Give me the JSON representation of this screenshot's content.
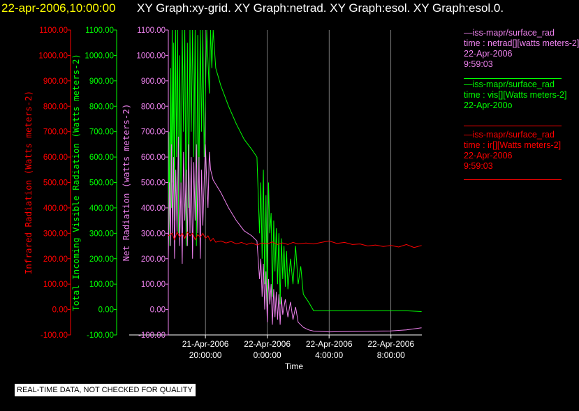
{
  "header": {
    "datetime": "22-apr-2006,10:00:00",
    "graphs": "XY Graph:xy-grid.  XY Graph:netrad.  XY Graph:esol.  XY Graph:esol.0."
  },
  "legend": [
    {
      "line1": "—iss-mapr/surface_rad",
      "line2": "time : netrad[][watts meters-2]",
      "line3": "22-Apr-2006",
      "line4": "9:59:03",
      "color": "#ee82ee"
    },
    {
      "line1": "—iss-mapr/surface_rad",
      "line2": "time : vis[][Watts meters-2]",
      "line3": "22-Apr-200o",
      "line4": "",
      "color": "#00ff00"
    },
    {
      "line1": "—iss-mapr/surface_rad",
      "line2": "time : ir[][Watts meters-2]",
      "line3": "22-Apr-2006",
      "line4": "9:59:03",
      "color": "#ff0000"
    }
  ],
  "disclaimer": "REAL-TIME DATA, NOT CHECKED FOR QUALITY",
  "colors": {
    "ir": "#ff0000",
    "vis": "#00ff00",
    "netrad": "#ee82ee",
    "grid": "#ffffff",
    "axis": "#ffffff"
  },
  "chart_data": {
    "type": "line",
    "xlabel": "Time",
    "x_ticks": [
      {
        "value": "2006-04-21T20:00",
        "label1": "21-Apr-2006",
        "label2": "20:00:00"
      },
      {
        "value": "2006-04-22T00:00",
        "label1": "22-Apr-2006",
        "label2": "0:00:00"
      },
      {
        "value": "2006-04-22T04:00",
        "label1": "22-Apr-2006",
        "label2": "4:00:00"
      },
      {
        "value": "2006-04-22T08:00",
        "label1": "22-Apr-2006",
        "label2": "8:00:00"
      }
    ],
    "xlim": [
      "2006-04-21T17:36",
      "2006-04-22T10:00"
    ],
    "axes": [
      {
        "id": "ir",
        "ylabel": "Infrared Radiation (Watts meters-2)",
        "ylim": [
          -100,
          1100
        ],
        "ticks": [
          "1100.00",
          "1000.00",
          "900.00",
          "800.00",
          "700.00",
          "600.00",
          "500.00",
          "400.00",
          "300.00",
          "200.00",
          "100.00",
          "0.00",
          "-100.00"
        ]
      },
      {
        "id": "vis",
        "ylabel": "Total Incoming Visible Radiation (Watts meters-2)",
        "ylim": [
          -100,
          1100
        ],
        "ticks": [
          "1100.00",
          "1000.00",
          "900.00",
          "800.00",
          "700.00",
          "600.00",
          "500.00",
          "400.00",
          "300.00",
          "200.00",
          "100.00",
          "0.00",
          "-100.00"
        ]
      },
      {
        "id": "netrad",
        "ylabel": "Net Radiation (watts meters-2)",
        "ylim": [
          -100,
          1100
        ],
        "ticks": [
          "1100.00",
          "1000.00",
          "900.00",
          "800.00",
          "700.00",
          "600.00",
          "500.00",
          "400.00",
          "300.00",
          "200.00",
          "100.00",
          "0.00",
          "-100.00"
        ]
      }
    ],
    "grid": true,
    "legend_position": "top-right",
    "series": [
      {
        "id": "vis",
        "points": [
          [
            "2006-04-21T17:36",
            300
          ],
          [
            "2006-04-21T17:39",
            700
          ],
          [
            "2006-04-21T17:42",
            250
          ],
          [
            "2006-04-21T17:45",
            950
          ],
          [
            "2006-04-21T17:48",
            400
          ],
          [
            "2006-04-21T17:51",
            1100
          ],
          [
            "2006-04-21T17:54",
            500
          ],
          [
            "2006-04-21T17:57",
            1050
          ],
          [
            "2006-04-21T18:00",
            350
          ],
          [
            "2006-04-21T18:04",
            1100
          ],
          [
            "2006-04-21T18:08",
            600
          ],
          [
            "2006-04-21T18:12",
            1100
          ],
          [
            "2006-04-21T18:16",
            300
          ],
          [
            "2006-04-21T18:20",
            1000
          ],
          [
            "2006-04-21T18:25",
            450
          ],
          [
            "2006-04-21T18:30",
            1100
          ],
          [
            "2006-04-21T18:35",
            700
          ],
          [
            "2006-04-21T18:40",
            1100
          ],
          [
            "2006-04-21T18:45",
            250
          ],
          [
            "2006-04-21T18:50",
            1050
          ],
          [
            "2006-04-21T18:55",
            400
          ],
          [
            "2006-04-21T19:00",
            1100
          ],
          [
            "2006-04-21T19:05",
            700
          ],
          [
            "2006-04-21T19:10",
            1100
          ],
          [
            "2006-04-21T19:15",
            600
          ],
          [
            "2006-04-21T19:20",
            1100
          ],
          [
            "2006-04-21T19:25",
            250
          ],
          [
            "2006-04-21T19:30",
            1080
          ],
          [
            "2006-04-21T19:35",
            500
          ],
          [
            "2006-04-21T19:40",
            1100
          ],
          [
            "2006-04-21T19:45",
            700
          ],
          [
            "2006-04-21T19:50",
            1100
          ],
          [
            "2006-04-21T19:55",
            600
          ],
          [
            "2006-04-21T20:05",
            1100
          ],
          [
            "2006-04-21T20:15",
            850
          ],
          [
            "2006-04-21T20:20",
            1100
          ],
          [
            "2006-04-21T20:25",
            950
          ],
          [
            "2006-04-21T20:30",
            1100
          ],
          [
            "2006-04-21T20:40",
            950
          ],
          [
            "2006-04-21T21:00",
            880
          ],
          [
            "2006-04-21T21:30",
            800
          ],
          [
            "2006-04-21T22:00",
            730
          ],
          [
            "2006-04-21T22:30",
            670
          ],
          [
            "2006-04-21T23:00",
            630
          ],
          [
            "2006-04-21T23:20",
            600
          ],
          [
            "2006-04-21T23:30",
            300
          ],
          [
            "2006-04-21T23:35",
            500
          ],
          [
            "2006-04-21T23:40",
            200
          ],
          [
            "2006-04-21T23:45",
            550
          ],
          [
            "2006-04-21T23:50",
            100
          ],
          [
            "2006-04-21T23:55",
            450
          ],
          [
            "2006-04-22T00:00",
            20
          ],
          [
            "2006-04-22T00:05",
            500
          ],
          [
            "2006-04-22T00:10",
            300
          ],
          [
            "2006-04-22T00:15",
            380
          ],
          [
            "2006-04-22T00:20",
            50
          ],
          [
            "2006-04-22T00:25",
            350
          ],
          [
            "2006-04-22T00:30",
            150
          ],
          [
            "2006-04-22T00:35",
            320
          ],
          [
            "2006-04-22T00:40",
            100
          ],
          [
            "2006-04-22T00:45",
            300
          ],
          [
            "2006-04-22T00:50",
            20
          ],
          [
            "2006-04-22T00:55",
            280
          ],
          [
            "2006-04-22T01:00",
            120
          ],
          [
            "2006-04-22T01:05",
            250
          ],
          [
            "2006-04-22T01:10",
            90
          ],
          [
            "2006-04-22T01:15",
            230
          ],
          [
            "2006-04-22T01:20",
            80
          ],
          [
            "2006-04-22T01:30",
            200
          ],
          [
            "2006-04-22T01:40",
            100
          ],
          [
            "2006-04-22T01:50",
            250
          ],
          [
            "2006-04-22T02:00",
            100
          ],
          [
            "2006-04-22T02:10",
            170
          ],
          [
            "2006-04-22T02:20",
            60
          ],
          [
            "2006-04-22T02:40",
            30
          ],
          [
            "2006-04-22T03:00",
            -5
          ],
          [
            "2006-04-22T04:00",
            -5
          ],
          [
            "2006-04-22T05:00",
            -5
          ],
          [
            "2006-04-22T06:00",
            -5
          ],
          [
            "2006-04-22T07:00",
            -5
          ],
          [
            "2006-04-22T08:00",
            -5
          ],
          [
            "2006-04-22T09:00",
            -5
          ],
          [
            "2006-04-22T09:59",
            -8
          ]
        ]
      },
      {
        "id": "netrad",
        "points": [
          [
            "2006-04-21T17:36",
            200
          ],
          [
            "2006-04-21T17:40",
            500
          ],
          [
            "2006-04-21T17:44",
            250
          ],
          [
            "2006-04-21T17:48",
            650
          ],
          [
            "2006-04-21T17:52",
            300
          ],
          [
            "2006-04-21T17:56",
            600
          ],
          [
            "2006-04-21T18:00",
            200
          ],
          [
            "2006-04-21T18:05",
            550
          ],
          [
            "2006-04-21T18:10",
            300
          ],
          [
            "2006-04-21T18:15",
            680
          ],
          [
            "2006-04-21T18:20",
            250
          ],
          [
            "2006-04-21T18:25",
            500
          ],
          [
            "2006-04-21T18:30",
            180
          ],
          [
            "2006-04-21T18:35",
            620
          ],
          [
            "2006-04-21T18:40",
            350
          ],
          [
            "2006-04-21T18:45",
            550
          ],
          [
            "2006-04-21T18:50",
            250
          ],
          [
            "2006-04-21T18:55",
            650
          ],
          [
            "2006-04-21T19:00",
            300
          ],
          [
            "2006-04-21T19:05",
            600
          ],
          [
            "2006-04-21T19:10",
            200
          ],
          [
            "2006-04-21T19:15",
            580
          ],
          [
            "2006-04-21T19:20",
            350
          ],
          [
            "2006-04-21T19:25",
            650
          ],
          [
            "2006-04-21T19:30",
            300
          ],
          [
            "2006-04-21T19:35",
            600
          ],
          [
            "2006-04-21T19:40",
            200
          ],
          [
            "2006-04-21T19:45",
            550
          ],
          [
            "2006-04-21T19:50",
            330
          ],
          [
            "2006-04-21T19:55",
            500
          ],
          [
            "2006-04-21T20:00",
            650
          ],
          [
            "2006-04-21T20:05",
            500
          ],
          [
            "2006-04-21T20:10",
            400
          ],
          [
            "2006-04-21T20:15",
            620
          ],
          [
            "2006-04-21T20:20",
            550
          ],
          [
            "2006-04-21T20:30",
            510
          ],
          [
            "2006-04-21T21:00",
            460
          ],
          [
            "2006-04-21T21:30",
            400
          ],
          [
            "2006-04-21T22:00",
            350
          ],
          [
            "2006-04-21T22:30",
            310
          ],
          [
            "2006-04-21T23:00",
            290
          ],
          [
            "2006-04-21T23:20",
            270
          ],
          [
            "2006-04-21T23:30",
            120
          ],
          [
            "2006-04-21T23:35",
            200
          ],
          [
            "2006-04-21T23:40",
            50
          ],
          [
            "2006-04-21T23:45",
            180
          ],
          [
            "2006-04-21T23:50",
            0
          ],
          [
            "2006-04-21T23:55",
            150
          ],
          [
            "2006-04-22T00:00",
            -50
          ],
          [
            "2006-04-22T00:05",
            120
          ],
          [
            "2006-04-22T00:10",
            20
          ],
          [
            "2006-04-22T00:15",
            100
          ],
          [
            "2006-04-22T00:20",
            -60
          ],
          [
            "2006-04-22T00:25",
            80
          ],
          [
            "2006-04-22T00:30",
            -30
          ],
          [
            "2006-04-22T00:35",
            70
          ],
          [
            "2006-04-22T00:40",
            -40
          ],
          [
            "2006-04-22T00:45",
            60
          ],
          [
            "2006-04-22T00:50",
            -60
          ],
          [
            "2006-04-22T00:55",
            50
          ],
          [
            "2006-04-22T01:00",
            -20
          ],
          [
            "2006-04-22T01:10",
            40
          ],
          [
            "2006-04-22T01:20",
            -30
          ],
          [
            "2006-04-22T01:30",
            30
          ],
          [
            "2006-04-22T01:40",
            -40
          ],
          [
            "2006-04-22T01:50",
            10
          ],
          [
            "2006-04-22T02:00",
            -50
          ],
          [
            "2006-04-22T02:20",
            -70
          ],
          [
            "2006-04-22T02:40",
            -80
          ],
          [
            "2006-04-22T03:00",
            -85
          ],
          [
            "2006-04-22T04:00",
            -88
          ],
          [
            "2006-04-22T05:00",
            -87
          ],
          [
            "2006-04-22T06:00",
            -86
          ],
          [
            "2006-04-22T07:00",
            -85
          ],
          [
            "2006-04-22T08:00",
            -84
          ],
          [
            "2006-04-22T09:00",
            -80
          ],
          [
            "2006-04-22T09:59",
            -72
          ]
        ]
      },
      {
        "id": "ir",
        "points": [
          [
            "2006-04-21T17:36",
            290
          ],
          [
            "2006-04-21T17:50",
            300
          ],
          [
            "2006-04-21T18:00",
            275
          ],
          [
            "2006-04-21T18:10",
            305
          ],
          [
            "2006-04-21T18:20",
            285
          ],
          [
            "2006-04-21T18:30",
            300
          ],
          [
            "2006-04-21T18:40",
            280
          ],
          [
            "2006-04-21T18:50",
            305
          ],
          [
            "2006-04-21T19:00",
            290
          ],
          [
            "2006-04-21T19:10",
            300
          ],
          [
            "2006-04-21T19:20",
            275
          ],
          [
            "2006-04-21T19:30",
            295
          ],
          [
            "2006-04-21T19:40",
            285
          ],
          [
            "2006-04-21T19:50",
            300
          ],
          [
            "2006-04-21T20:00",
            280
          ],
          [
            "2006-04-21T20:10",
            290
          ],
          [
            "2006-04-21T20:20",
            270
          ],
          [
            "2006-04-21T20:30",
            280
          ],
          [
            "2006-04-21T20:40",
            265
          ],
          [
            "2006-04-21T21:00",
            270
          ],
          [
            "2006-04-21T21:20",
            262
          ],
          [
            "2006-04-21T21:40",
            268
          ],
          [
            "2006-04-21T22:00",
            258
          ],
          [
            "2006-04-21T22:20",
            264
          ],
          [
            "2006-04-21T22:40",
            256
          ],
          [
            "2006-04-21T23:00",
            262
          ],
          [
            "2006-04-21T23:20",
            254
          ],
          [
            "2006-04-21T23:40",
            262
          ],
          [
            "2006-04-22T00:00",
            258
          ],
          [
            "2006-04-22T00:20",
            266
          ],
          [
            "2006-04-22T00:40",
            256
          ],
          [
            "2006-04-22T01:00",
            262
          ],
          [
            "2006-04-22T01:20",
            256
          ],
          [
            "2006-04-22T01:40",
            264
          ],
          [
            "2006-04-22T02:00",
            258
          ],
          [
            "2006-04-22T02:30",
            262
          ],
          [
            "2006-04-22T03:00",
            258
          ],
          [
            "2006-04-22T03:30",
            264
          ],
          [
            "2006-04-22T04:00",
            270
          ],
          [
            "2006-04-22T04:30",
            260
          ],
          [
            "2006-04-22T05:00",
            264
          ],
          [
            "2006-04-22T05:30",
            256
          ],
          [
            "2006-04-22T06:00",
            258
          ],
          [
            "2006-04-22T06:30",
            250
          ],
          [
            "2006-04-22T07:00",
            254
          ],
          [
            "2006-04-22T07:30",
            248
          ],
          [
            "2006-04-22T08:00",
            252
          ],
          [
            "2006-04-22T08:30",
            246
          ],
          [
            "2006-04-22T09:00",
            256
          ],
          [
            "2006-04-22T09:30",
            244
          ],
          [
            "2006-04-22T09:59",
            252
          ]
        ]
      }
    ]
  }
}
